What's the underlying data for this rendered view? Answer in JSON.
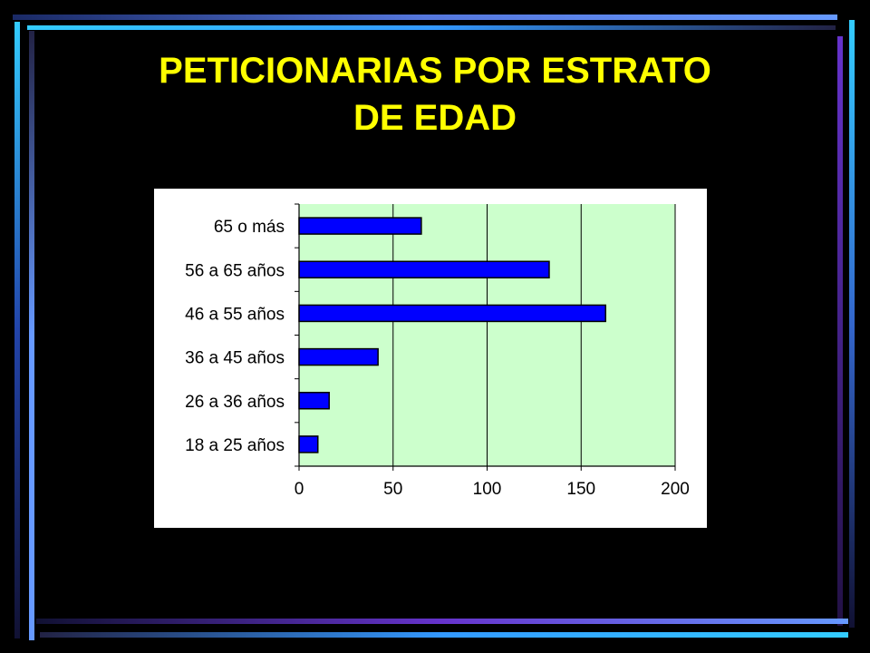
{
  "title_line1": "PETICIONARIAS POR ESTRATO",
  "title_line2": "DE EDAD",
  "colors": {
    "background": "#000000",
    "title": "#FFFF00",
    "plot_area": "#CCFFCC",
    "bar_fill": "#0000FF",
    "frame_light": "#6699FF",
    "frame_violet": "#6633CC",
    "frame_cyan": "#33CCFF"
  },
  "chart_data": {
    "type": "bar",
    "orientation": "horizontal",
    "categories": [
      "65 o más",
      "56 a 65 años",
      "46 a 55 años",
      "36 a 45 años",
      "26 a 36 años",
      "18 a 25 años"
    ],
    "values": [
      65,
      133,
      163,
      42,
      16,
      10
    ],
    "xlim": [
      0,
      200
    ],
    "xticks": [
      "0",
      "50",
      "100",
      "150",
      "200"
    ],
    "grid": "vertical",
    "legend": "none"
  }
}
